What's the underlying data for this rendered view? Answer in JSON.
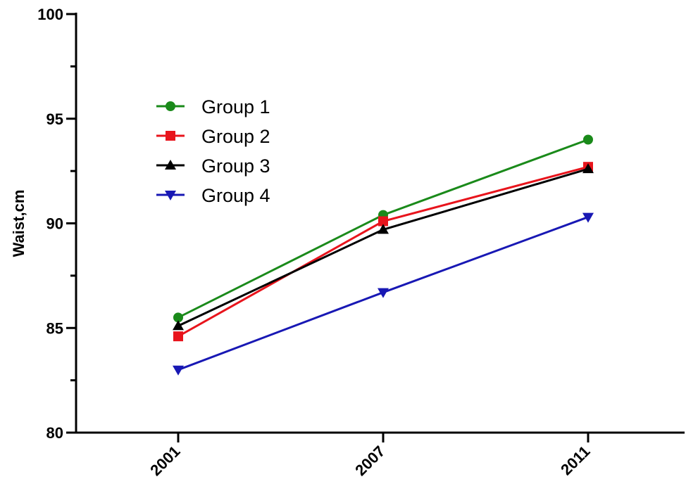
{
  "chart_data": {
    "type": "line",
    "title": "",
    "xlabel": "",
    "ylabel": "Waist,cm",
    "categories": [
      "2001",
      "2007",
      "2011"
    ],
    "ylim": [
      80,
      100
    ],
    "yticks_major": [
      80,
      85,
      90,
      95,
      100
    ],
    "yticks_minor": [
      82.5,
      87.5,
      92.5,
      97.5
    ],
    "grid": false,
    "legend_position": "top-left",
    "series": [
      {
        "name": "Group 1",
        "marker": "circle",
        "color": "#1a8a1a",
        "values": [
          85.5,
          90.4,
          94.0
        ]
      },
      {
        "name": "Group 2",
        "marker": "square",
        "color": "#e8141c",
        "values": [
          84.6,
          90.1,
          92.7
        ]
      },
      {
        "name": "Group 3",
        "marker": "triangle-up",
        "color": "#000000",
        "values": [
          85.1,
          89.7,
          92.6
        ]
      },
      {
        "name": "Group 4",
        "marker": "triangle-down",
        "color": "#1818b4",
        "values": [
          83.0,
          86.7,
          90.3
        ]
      }
    ]
  }
}
